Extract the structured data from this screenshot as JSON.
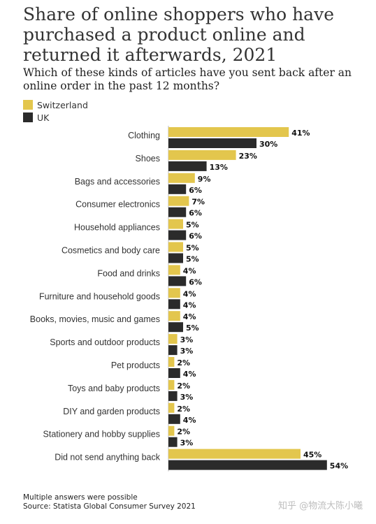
{
  "title": "Share of online shoppers who have purchased a product online and returned it afterwards, 2021",
  "subtitle": "Which of these kinds of articles have you sent back after an online order in the past 12 months?",
  "footer": {
    "note": "Multiple answers were possible",
    "source": "Source: Statista Global Consumer Survey 2021"
  },
  "watermark": "知乎 @物流大陈小曦",
  "chart_data": {
    "type": "bar",
    "orientation": "horizontal",
    "value_suffix": "%",
    "categories": [
      "Clothing",
      "Shoes",
      "Bags and accessories",
      "Consumer electronics",
      "Household appliances",
      "Cosmetics and body care",
      "Food and drinks",
      "Furniture and household goods",
      "Books, movies, music and games",
      "Sports and outdoor products",
      "Pet products",
      "Toys and baby products",
      "DIY and garden products",
      "Stationery and hobby supplies",
      "Did not send anything back"
    ],
    "series": [
      {
        "name": "Switzerland",
        "color": "#e3c64d",
        "values": [
          41,
          23,
          9,
          7,
          5,
          5,
          4,
          4,
          4,
          3,
          2,
          2,
          2,
          2,
          45
        ]
      },
      {
        "name": "UK",
        "color": "#2b2b2b",
        "values": [
          30,
          13,
          6,
          6,
          6,
          5,
          6,
          4,
          5,
          3,
          4,
          3,
          4,
          3,
          54
        ]
      }
    ],
    "xlim": [
      0,
      54
    ],
    "grid": false,
    "legend_position": "top-left"
  }
}
